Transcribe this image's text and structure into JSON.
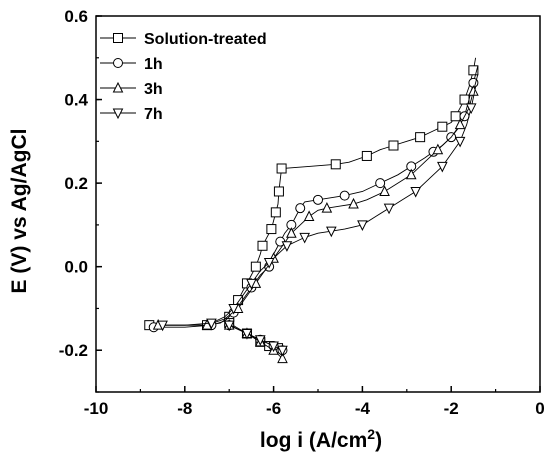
{
  "chart_data": {
    "type": "line",
    "xlabel_main": "log i (A/cm",
    "xlabel_sup": "2",
    "xlabel_end": ")",
    "ylabel": "E (V) vs Ag/AgCl",
    "xlim": [
      -10,
      0
    ],
    "ylim": [
      -0.3,
      0.6
    ],
    "x_ticks": [
      -10,
      -8,
      -6,
      -4,
      -2,
      0
    ],
    "x_tick_labels": [
      "-10",
      "-8",
      "-6",
      "-4",
      "-2",
      "0"
    ],
    "y_ticks": [
      -0.2,
      0.0,
      0.2,
      0.4,
      0.6
    ],
    "y_tick_labels": [
      "-0.2",
      "0.0",
      "0.2",
      "0.4",
      "0.6"
    ],
    "grid": false,
    "legend_position": "top-left",
    "series": [
      {
        "name": "Solution-treated",
        "marker": "square",
        "points": [
          [
            -8.8,
            -0.14
          ],
          [
            -8.0,
            -0.14
          ],
          [
            -7.5,
            -0.14
          ],
          [
            -7.2,
            -0.135
          ],
          [
            -7.0,
            -0.12
          ],
          [
            -6.9,
            -0.1
          ],
          [
            -6.8,
            -0.08
          ],
          [
            -6.7,
            -0.06
          ],
          [
            -6.6,
            -0.04
          ],
          [
            -6.5,
            -0.02
          ],
          [
            -6.4,
            0.0
          ],
          [
            -6.3,
            0.03
          ],
          [
            -6.25,
            0.05
          ],
          [
            -6.15,
            0.07
          ],
          [
            -6.05,
            0.09
          ],
          [
            -6.0,
            0.11
          ],
          [
            -5.95,
            0.13
          ],
          [
            -5.9,
            0.15
          ],
          [
            -5.88,
            0.18
          ],
          [
            -5.85,
            0.21
          ],
          [
            -5.82,
            0.235
          ],
          [
            -5.2,
            0.24
          ],
          [
            -4.6,
            0.245
          ],
          [
            -4.3,
            0.25
          ],
          [
            -3.9,
            0.265
          ],
          [
            -3.6,
            0.28
          ],
          [
            -3.3,
            0.29
          ],
          [
            -3.0,
            0.3
          ],
          [
            -2.7,
            0.31
          ],
          [
            -2.4,
            0.325
          ],
          [
            -2.2,
            0.335
          ],
          [
            -2.0,
            0.345
          ],
          [
            -1.9,
            0.36
          ],
          [
            -1.8,
            0.38
          ],
          [
            -1.7,
            0.4
          ],
          [
            -1.6,
            0.43
          ],
          [
            -1.5,
            0.47
          ],
          [
            -1.45,
            0.5
          ]
        ],
        "cathodic": [
          [
            -7.0,
            -0.135
          ],
          [
            -6.6,
            -0.16
          ],
          [
            -6.3,
            -0.18
          ],
          [
            -6.1,
            -0.19
          ],
          [
            -5.9,
            -0.195
          ]
        ]
      },
      {
        "name": "1h",
        "marker": "circle",
        "points": [
          [
            -8.7,
            -0.145
          ],
          [
            -8.0,
            -0.145
          ],
          [
            -7.4,
            -0.14
          ],
          [
            -7.1,
            -0.13
          ],
          [
            -6.9,
            -0.11
          ],
          [
            -6.7,
            -0.08
          ],
          [
            -6.5,
            -0.05
          ],
          [
            -6.3,
            -0.02
          ],
          [
            -6.1,
            0.0
          ],
          [
            -6.0,
            0.03
          ],
          [
            -5.85,
            0.06
          ],
          [
            -5.75,
            0.08
          ],
          [
            -5.6,
            0.1
          ],
          [
            -5.5,
            0.12
          ],
          [
            -5.4,
            0.14
          ],
          [
            -5.3,
            0.155
          ],
          [
            -5.0,
            0.16
          ],
          [
            -4.7,
            0.165
          ],
          [
            -4.4,
            0.17
          ],
          [
            -4.0,
            0.18
          ],
          [
            -3.6,
            0.2
          ],
          [
            -3.2,
            0.22
          ],
          [
            -2.9,
            0.24
          ],
          [
            -2.6,
            0.26
          ],
          [
            -2.4,
            0.275
          ],
          [
            -2.2,
            0.29
          ],
          [
            -2.0,
            0.31
          ],
          [
            -1.85,
            0.33
          ],
          [
            -1.7,
            0.36
          ],
          [
            -1.6,
            0.4
          ],
          [
            -1.5,
            0.44
          ],
          [
            -1.4,
            0.48
          ]
        ],
        "cathodic": [
          [
            -7.0,
            -0.14
          ],
          [
            -6.6,
            -0.16
          ],
          [
            -6.3,
            -0.175
          ],
          [
            -6.0,
            -0.19
          ],
          [
            -5.8,
            -0.2
          ]
        ]
      },
      {
        "name": "3h",
        "marker": "triangle-up",
        "points": [
          [
            -8.6,
            -0.14
          ],
          [
            -8.0,
            -0.14
          ],
          [
            -7.5,
            -0.14
          ],
          [
            -7.1,
            -0.125
          ],
          [
            -6.8,
            -0.1
          ],
          [
            -6.6,
            -0.07
          ],
          [
            -6.4,
            -0.04
          ],
          [
            -6.2,
            -0.01
          ],
          [
            -6.0,
            0.02
          ],
          [
            -5.8,
            0.05
          ],
          [
            -5.6,
            0.08
          ],
          [
            -5.4,
            0.1
          ],
          [
            -5.2,
            0.12
          ],
          [
            -5.0,
            0.135
          ],
          [
            -4.8,
            0.14
          ],
          [
            -4.5,
            0.145
          ],
          [
            -4.2,
            0.15
          ],
          [
            -3.9,
            0.16
          ],
          [
            -3.5,
            0.18
          ],
          [
            -3.2,
            0.2
          ],
          [
            -2.9,
            0.22
          ],
          [
            -2.6,
            0.25
          ],
          [
            -2.3,
            0.28
          ],
          [
            -2.0,
            0.31
          ],
          [
            -1.8,
            0.34
          ],
          [
            -1.6,
            0.38
          ],
          [
            -1.5,
            0.42
          ],
          [
            -1.4,
            0.46
          ]
        ],
        "cathodic": [
          [
            -7.0,
            -0.14
          ],
          [
            -6.6,
            -0.16
          ],
          [
            -6.3,
            -0.18
          ],
          [
            -6.0,
            -0.2
          ],
          [
            -5.8,
            -0.22
          ]
        ]
      },
      {
        "name": "7h",
        "marker": "triangle-down",
        "points": [
          [
            -8.5,
            -0.14
          ],
          [
            -8.0,
            -0.14
          ],
          [
            -7.4,
            -0.135
          ],
          [
            -7.1,
            -0.12
          ],
          [
            -6.9,
            -0.1
          ],
          [
            -6.7,
            -0.07
          ],
          [
            -6.5,
            -0.04
          ],
          [
            -6.3,
            -0.01
          ],
          [
            -6.1,
            0.01
          ],
          [
            -5.9,
            0.03
          ],
          [
            -5.7,
            0.05
          ],
          [
            -5.5,
            0.06
          ],
          [
            -5.3,
            0.07
          ],
          [
            -5.0,
            0.08
          ],
          [
            -4.7,
            0.085
          ],
          [
            -4.4,
            0.09
          ],
          [
            -4.0,
            0.1
          ],
          [
            -3.7,
            0.12
          ],
          [
            -3.4,
            0.14
          ],
          [
            -3.1,
            0.16
          ],
          [
            -2.8,
            0.18
          ],
          [
            -2.5,
            0.21
          ],
          [
            -2.2,
            0.24
          ],
          [
            -2.0,
            0.27
          ],
          [
            -1.8,
            0.3
          ],
          [
            -1.65,
            0.34
          ],
          [
            -1.55,
            0.38
          ],
          [
            -1.45,
            0.43
          ]
        ],
        "cathodic": [
          [
            -7.0,
            -0.14
          ],
          [
            -6.6,
            -0.16
          ],
          [
            -6.3,
            -0.175
          ],
          [
            -6.0,
            -0.19
          ],
          [
            -5.8,
            -0.2
          ]
        ]
      }
    ]
  }
}
